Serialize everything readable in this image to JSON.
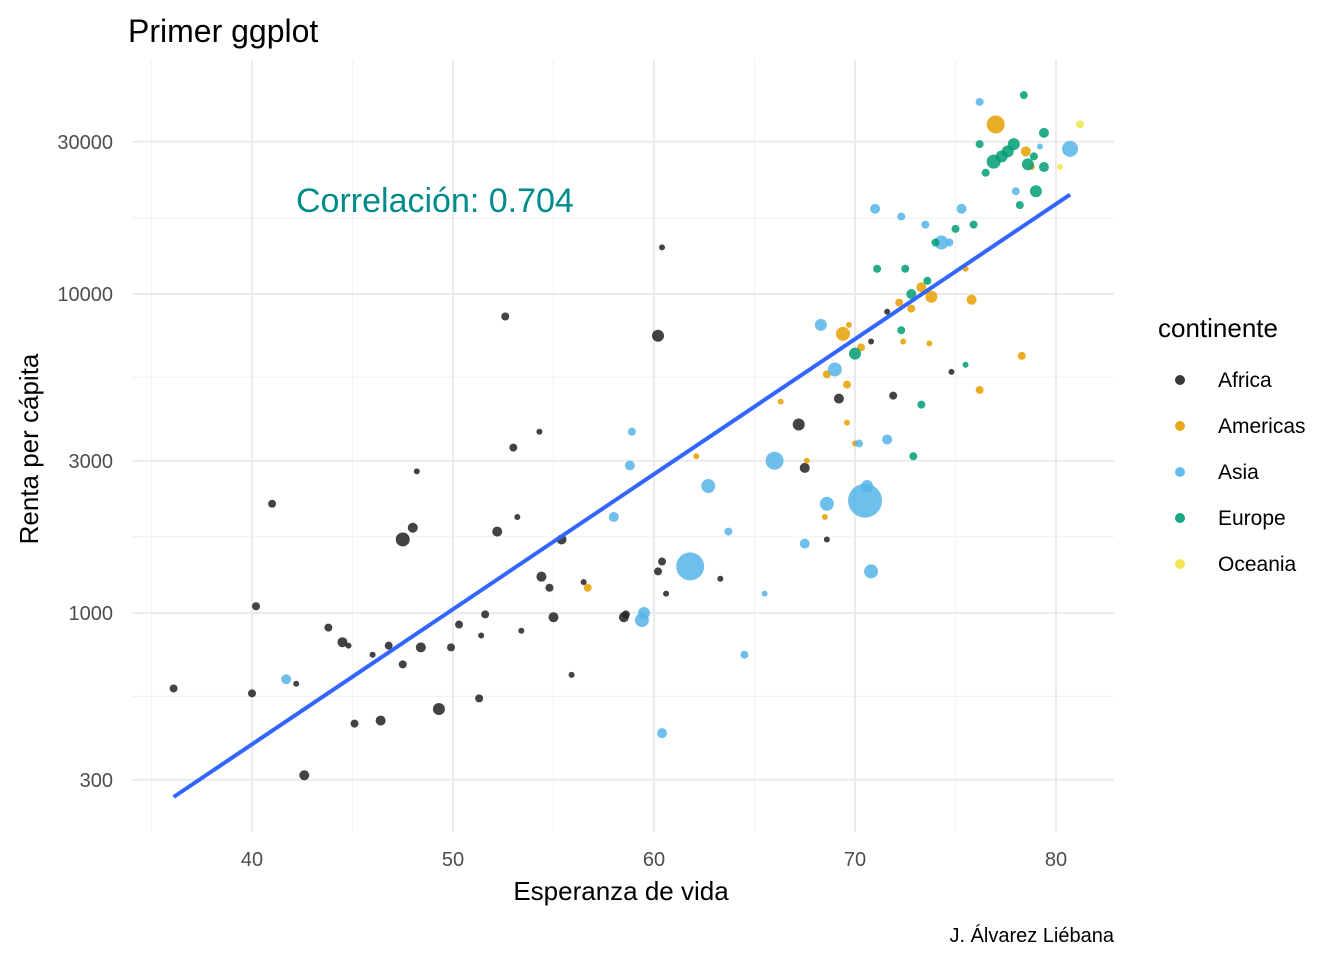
{
  "chart_data": {
    "type": "scatter",
    "title": "Primer ggplot",
    "xlabel": "Esperanza de vida",
    "ylabel": "Renta per cápita",
    "caption": "J. Álvarez Liébana",
    "annotation": "Correlación: 0.704",
    "x_scale": "linear",
    "y_scale": "log10",
    "xlim": [
      35,
      83
    ],
    "ylim": [
      200,
      50000
    ],
    "x_ticks": [
      40,
      50,
      60,
      70,
      80
    ],
    "y_ticks": [
      300,
      1000,
      3000,
      10000,
      30000
    ],
    "y_tick_labels": [
      "300",
      "1000",
      "3000",
      "10000",
      "30000"
    ],
    "grid": true,
    "legend": {
      "title": "continente",
      "position": "right",
      "entries": [
        "Africa",
        "Americas",
        "Asia",
        "Europe",
        "Oceania"
      ]
    },
    "colors": {
      "Africa": "#222222",
      "Americas": "#E69F00",
      "Asia": "#56B4E9",
      "Europe": "#009E73",
      "Oceania": "#F0E442",
      "trend": "#3366FF",
      "annotation": "#008B8B"
    },
    "trend_line": {
      "x": [
        36.1,
        80.7
      ],
      "y": [
        265,
        20500
      ]
    },
    "series": [
      {
        "name": "Africa",
        "points": [
          {
            "x": 36.1,
            "y": 580,
            "s": 4
          },
          {
            "x": 40.0,
            "y": 560,
            "s": 4
          },
          {
            "x": 40.2,
            "y": 1050,
            "s": 4
          },
          {
            "x": 41.0,
            "y": 2200,
            "s": 4
          },
          {
            "x": 42.2,
            "y": 600,
            "s": 3
          },
          {
            "x": 42.6,
            "y": 310,
            "s": 5
          },
          {
            "x": 43.8,
            "y": 900,
            "s": 4
          },
          {
            "x": 44.5,
            "y": 810,
            "s": 5
          },
          {
            "x": 44.8,
            "y": 790,
            "s": 3
          },
          {
            "x": 45.1,
            "y": 450,
            "s": 4
          },
          {
            "x": 46.0,
            "y": 740,
            "s": 3
          },
          {
            "x": 46.4,
            "y": 460,
            "s": 5
          },
          {
            "x": 46.8,
            "y": 790,
            "s": 4
          },
          {
            "x": 47.5,
            "y": 1700,
            "s": 7
          },
          {
            "x": 47.5,
            "y": 690,
            "s": 4
          },
          {
            "x": 48.0,
            "y": 1850,
            "s": 5
          },
          {
            "x": 48.2,
            "y": 2780,
            "s": 3
          },
          {
            "x": 48.4,
            "y": 780,
            "s": 5
          },
          {
            "x": 49.3,
            "y": 500,
            "s": 6
          },
          {
            "x": 49.9,
            "y": 780,
            "s": 4
          },
          {
            "x": 50.3,
            "y": 920,
            "s": 4
          },
          {
            "x": 51.3,
            "y": 540,
            "s": 4
          },
          {
            "x": 51.4,
            "y": 850,
            "s": 3
          },
          {
            "x": 51.6,
            "y": 990,
            "s": 4
          },
          {
            "x": 52.2,
            "y": 1800,
            "s": 5
          },
          {
            "x": 52.6,
            "y": 8500,
            "s": 4
          },
          {
            "x": 53.0,
            "y": 3300,
            "s": 4
          },
          {
            "x": 53.2,
            "y": 2000,
            "s": 3
          },
          {
            "x": 53.4,
            "y": 880,
            "s": 3
          },
          {
            "x": 54.3,
            "y": 3700,
            "s": 3
          },
          {
            "x": 54.4,
            "y": 1300,
            "s": 5
          },
          {
            "x": 54.8,
            "y": 1200,
            "s": 4
          },
          {
            "x": 55.0,
            "y": 970,
            "s": 5
          },
          {
            "x": 55.4,
            "y": 1700,
            "s": 5
          },
          {
            "x": 55.9,
            "y": 640,
            "s": 3
          },
          {
            "x": 56.5,
            "y": 1250,
            "s": 3
          },
          {
            "x": 58.5,
            "y": 970,
            "s": 5
          },
          {
            "x": 58.6,
            "y": 990,
            "s": 4
          },
          {
            "x": 60.2,
            "y": 1350,
            "s": 4
          },
          {
            "x": 60.2,
            "y": 7400,
            "s": 6
          },
          {
            "x": 60.4,
            "y": 1450,
            "s": 4
          },
          {
            "x": 60.4,
            "y": 14000,
            "s": 3
          },
          {
            "x": 60.6,
            "y": 1150,
            "s": 3
          },
          {
            "x": 63.3,
            "y": 1280,
            "s": 3
          },
          {
            "x": 67.2,
            "y": 3900,
            "s": 6
          },
          {
            "x": 67.5,
            "y": 2850,
            "s": 5
          },
          {
            "x": 68.6,
            "y": 1700,
            "s": 3
          },
          {
            "x": 69.2,
            "y": 4700,
            "s": 5
          },
          {
            "x": 70.8,
            "y": 7100,
            "s": 3
          },
          {
            "x": 71.6,
            "y": 8800,
            "s": 3
          },
          {
            "x": 71.9,
            "y": 4800,
            "s": 4
          },
          {
            "x": 74.8,
            "y": 5700,
            "s": 3
          }
        ]
      },
      {
        "name": "Americas",
        "points": [
          {
            "x": 56.7,
            "y": 1200,
            "s": 4
          },
          {
            "x": 62.1,
            "y": 3100,
            "s": 3
          },
          {
            "x": 66.3,
            "y": 4600,
            "s": 3
          },
          {
            "x": 67.6,
            "y": 3000,
            "s": 3
          },
          {
            "x": 68.5,
            "y": 2000,
            "s": 3
          },
          {
            "x": 68.6,
            "y": 5600,
            "s": 4
          },
          {
            "x": 69.4,
            "y": 7500,
            "s": 7
          },
          {
            "x": 69.6,
            "y": 5200,
            "s": 4
          },
          {
            "x": 69.7,
            "y": 8000,
            "s": 3
          },
          {
            "x": 69.6,
            "y": 3950,
            "s": 3
          },
          {
            "x": 70.0,
            "y": 3400,
            "s": 3
          },
          {
            "x": 70.3,
            "y": 6800,
            "s": 4
          },
          {
            "x": 72.2,
            "y": 9400,
            "s": 4
          },
          {
            "x": 72.4,
            "y": 7100,
            "s": 3
          },
          {
            "x": 72.8,
            "y": 9000,
            "s": 4
          },
          {
            "x": 73.3,
            "y": 10500,
            "s": 5
          },
          {
            "x": 73.7,
            "y": 7000,
            "s": 3
          },
          {
            "x": 73.8,
            "y": 9800,
            "s": 6
          },
          {
            "x": 75.5,
            "y": 12000,
            "s": 3
          },
          {
            "x": 75.8,
            "y": 9600,
            "s": 5
          },
          {
            "x": 76.2,
            "y": 5000,
            "s": 4
          },
          {
            "x": 78.3,
            "y": 6400,
            "s": 4
          },
          {
            "x": 78.8,
            "y": 25000,
            "s": 3
          },
          {
            "x": 78.5,
            "y": 28000,
            "s": 5
          },
          {
            "x": 77.0,
            "y": 34000,
            "s": 9
          }
        ]
      },
      {
        "name": "Asia",
        "points": [
          {
            "x": 41.7,
            "y": 620,
            "s": 5
          },
          {
            "x": 58.0,
            "y": 2000,
            "s": 5
          },
          {
            "x": 58.8,
            "y": 2900,
            "s": 5
          },
          {
            "x": 58.9,
            "y": 3700,
            "s": 4
          },
          {
            "x": 59.4,
            "y": 950,
            "s": 7
          },
          {
            "x": 59.5,
            "y": 1000,
            "s": 6
          },
          {
            "x": 61.8,
            "y": 1400,
            "s": 14
          },
          {
            "x": 62.7,
            "y": 2500,
            "s": 7
          },
          {
            "x": 63.7,
            "y": 1800,
            "s": 4
          },
          {
            "x": 64.5,
            "y": 740,
            "s": 4
          },
          {
            "x": 60.4,
            "y": 420,
            "s": 5
          },
          {
            "x": 65.5,
            "y": 1150,
            "s": 3
          },
          {
            "x": 66.0,
            "y": 3000,
            "s": 9
          },
          {
            "x": 67.5,
            "y": 1650,
            "s": 5
          },
          {
            "x": 68.3,
            "y": 8000,
            "s": 6
          },
          {
            "x": 68.6,
            "y": 2200,
            "s": 7
          },
          {
            "x": 69.0,
            "y": 5800,
            "s": 7
          },
          {
            "x": 70.2,
            "y": 3400,
            "s": 4
          },
          {
            "x": 70.5,
            "y": 2250,
            "s": 17
          },
          {
            "x": 70.6,
            "y": 2500,
            "s": 6
          },
          {
            "x": 70.8,
            "y": 1350,
            "s": 7
          },
          {
            "x": 71.0,
            "y": 18500,
            "s": 5
          },
          {
            "x": 71.6,
            "y": 3500,
            "s": 5
          },
          {
            "x": 72.3,
            "y": 17500,
            "s": 4
          },
          {
            "x": 73.5,
            "y": 16500,
            "s": 4
          },
          {
            "x": 74.3,
            "y": 14500,
            "s": 7
          },
          {
            "x": 74.7,
            "y": 14500,
            "s": 4
          },
          {
            "x": 75.3,
            "y": 18500,
            "s": 5
          },
          {
            "x": 76.2,
            "y": 40000,
            "s": 4
          },
          {
            "x": 78.0,
            "y": 21000,
            "s": 4
          },
          {
            "x": 79.2,
            "y": 29000,
            "s": 3
          },
          {
            "x": 80.7,
            "y": 28500,
            "s": 8
          }
        ]
      },
      {
        "name": "Europe",
        "points": [
          {
            "x": 70.0,
            "y": 6500,
            "s": 6
          },
          {
            "x": 72.5,
            "y": 12000,
            "s": 4
          },
          {
            "x": 71.1,
            "y": 12000,
            "s": 4
          },
          {
            "x": 72.8,
            "y": 10000,
            "s": 5
          },
          {
            "x": 73.3,
            "y": 4500,
            "s": 4
          },
          {
            "x": 73.6,
            "y": 11000,
            "s": 4
          },
          {
            "x": 74.0,
            "y": 14500,
            "s": 4
          },
          {
            "x": 75.0,
            "y": 16000,
            "s": 4
          },
          {
            "x": 75.5,
            "y": 6000,
            "s": 3
          },
          {
            "x": 75.9,
            "y": 16500,
            "s": 4
          },
          {
            "x": 76.2,
            "y": 29500,
            "s": 4
          },
          {
            "x": 76.5,
            "y": 24000,
            "s": 4
          },
          {
            "x": 77.3,
            "y": 27000,
            "s": 6
          },
          {
            "x": 77.6,
            "y": 28000,
            "s": 6
          },
          {
            "x": 77.9,
            "y": 29500,
            "s": 6
          },
          {
            "x": 78.2,
            "y": 19000,
            "s": 4
          },
          {
            "x": 78.4,
            "y": 42000,
            "s": 4
          },
          {
            "x": 78.6,
            "y": 25500,
            "s": 6
          },
          {
            "x": 78.9,
            "y": 27000,
            "s": 4
          },
          {
            "x": 79.0,
            "y": 21000,
            "s": 6
          },
          {
            "x": 79.4,
            "y": 25000,
            "s": 5
          },
          {
            "x": 79.4,
            "y": 32000,
            "s": 5
          },
          {
            "x": 72.3,
            "y": 7700,
            "s": 4
          },
          {
            "x": 72.9,
            "y": 3100,
            "s": 4
          },
          {
            "x": 76.9,
            "y": 26000,
            "s": 7
          }
        ]
      },
      {
        "name": "Oceania",
        "points": [
          {
            "x": 81.2,
            "y": 34000,
            "s": 4
          },
          {
            "x": 80.2,
            "y": 25000,
            "s": 3
          }
        ]
      }
    ]
  }
}
